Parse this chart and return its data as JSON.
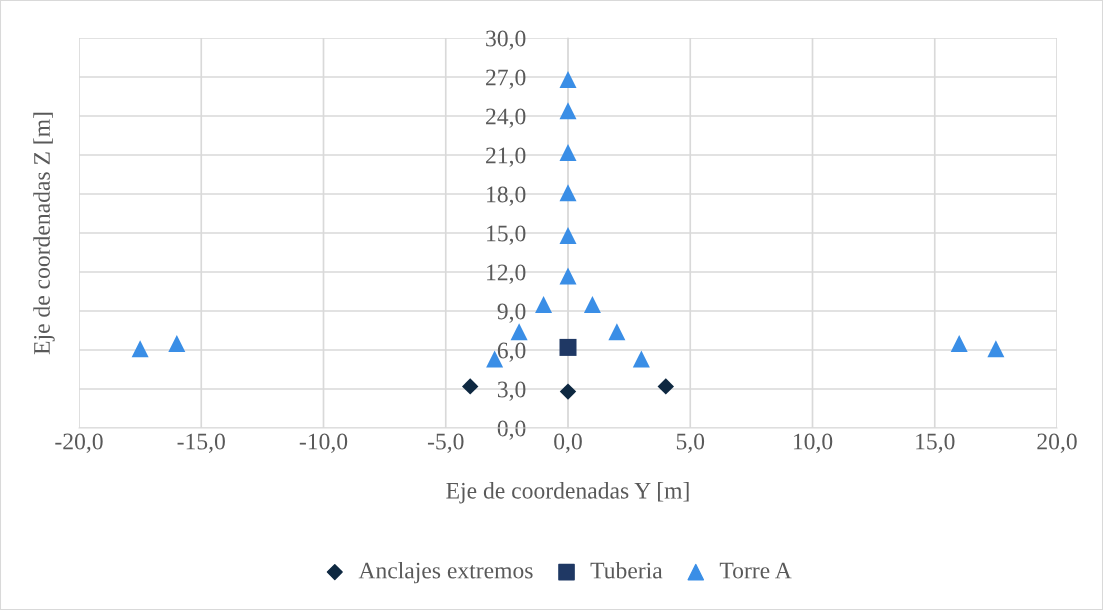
{
  "chart_data": {
    "type": "scatter",
    "xlabel": "Eje de coordenadas Y [m]",
    "ylabel": "Eje de coordenadas Z [m]",
    "xlim": [
      -20,
      20
    ],
    "ylim": [
      0,
      30
    ],
    "xticks": [
      {
        "value": -20,
        "label": "-20,0"
      },
      {
        "value": -15,
        "label": "-15,0"
      },
      {
        "value": -10,
        "label": "-10,0"
      },
      {
        "value": -5,
        "label": "-5,0"
      },
      {
        "value": 0,
        "label": "0,0"
      },
      {
        "value": 5,
        "label": "5,0"
      },
      {
        "value": 10,
        "label": "10,0"
      },
      {
        "value": 15,
        "label": "15,0"
      },
      {
        "value": 20,
        "label": "20,0"
      }
    ],
    "yticks": [
      {
        "value": 0,
        "label": "0,0"
      },
      {
        "value": 3,
        "label": "3,0"
      },
      {
        "value": 6,
        "label": "6,0"
      },
      {
        "value": 9,
        "label": "9,0"
      },
      {
        "value": 12,
        "label": "12,0"
      },
      {
        "value": 15,
        "label": "15,0"
      },
      {
        "value": 18,
        "label": "18,0"
      },
      {
        "value": 21,
        "label": "21,0"
      },
      {
        "value": 24,
        "label": "24,0"
      },
      {
        "value": 27,
        "label": "27,0"
      },
      {
        "value": 30,
        "label": "30,0"
      }
    ],
    "grid": true,
    "legend": "bottom",
    "series": [
      {
        "name": "Anclajes extremos",
        "color": "#0e2841",
        "marker": "diamond",
        "x": [
          -4,
          0,
          4
        ],
        "values": [
          3.2,
          2.8,
          3.2
        ]
      },
      {
        "name": "Tuberia",
        "color": "#1f3864",
        "marker": "square",
        "x": [
          0
        ],
        "values": [
          6.2
        ]
      },
      {
        "name": "Torre A",
        "color": "#3a8ee6",
        "marker": "triangle",
        "x": [
          0,
          0,
          0,
          0,
          0,
          0,
          -1,
          1,
          -2,
          2,
          -3,
          3,
          -16,
          -17.5,
          16,
          17.5
        ],
        "values": [
          26.8,
          24.4,
          21.2,
          18.1,
          14.8,
          11.7,
          9.5,
          9.5,
          7.4,
          7.4,
          5.3,
          5.3,
          6.5,
          6.1,
          6.5,
          6.1
        ]
      }
    ]
  }
}
